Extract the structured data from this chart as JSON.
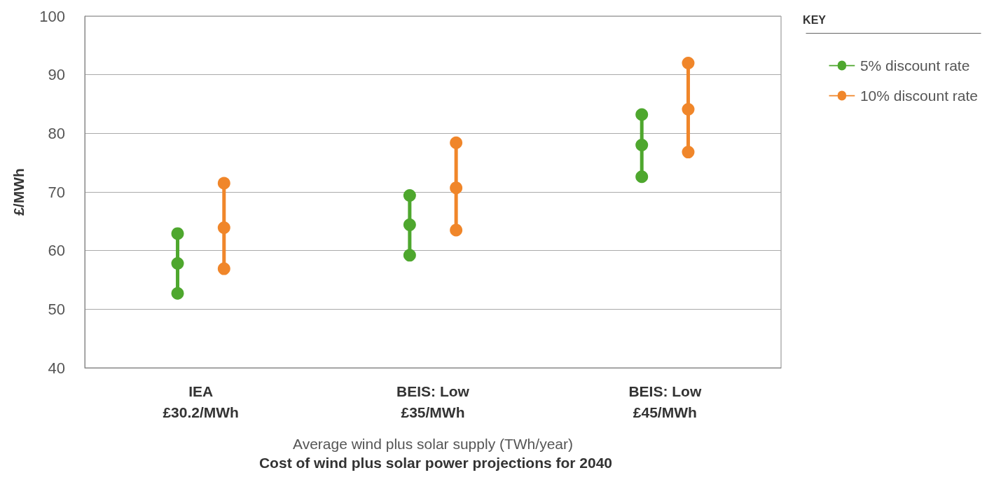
{
  "chart_data": {
    "type": "line",
    "title": "Cost of wind plus solar power projections for 2040",
    "xlabel": "Average wind plus solar supply (TWh/year)",
    "ylabel": "£/MWh",
    "legend_title": "KEY",
    "categories": [
      "IEA\n£30.2/MWh",
      "BEIS: Low\n£35/MWh",
      "BEIS: Low\n£45/MWh"
    ],
    "series": [
      {
        "name": "5% discount rate",
        "color": "#4ea72e",
        "x": [
          "IEA\n£30.2/MWh",
          "IEA\n£30.2/MWh",
          "IEA\n£30.2/MWh",
          "BEIS: Low\n£35/MWh",
          "BEIS: Low\n£35/MWh",
          "BEIS: Low\n£35/MWh",
          "BEIS: Low\n£35/MWh",
          "BEIS: Low\n£45/MWh",
          "BEIS: Low\n£45/MWh",
          "BEIS: Low\n£45/MWh",
          "BEIS: Low\n£45/MWh"
        ],
        "values": [
          52.7,
          57.8,
          62.9,
          null,
          59.2,
          64.4,
          69.4,
          null,
          72.6,
          78.0,
          83.2
        ]
      },
      {
        "name": "10% discount rate",
        "color": "#f0862a",
        "x": [
          "IEA\n£30.2/MWh",
          "IEA\n£30.2/MWh",
          "IEA\n£30.2/MWh",
          "BEIS: Low\n£35/MWh",
          "BEIS: Low\n£35/MWh",
          "BEIS: Low\n£35/MWh",
          "BEIS: Low\n£35/MWh",
          "BEIS: Low\n£45/MWh",
          "BEIS: Low\n£45/MWh",
          "BEIS: Low\n£45/MWh",
          "BEIS: Low\n£45/MWh"
        ],
        "values": [
          56.9,
          63.9,
          71.5,
          null,
          63.5,
          70.7,
          78.4,
          null,
          76.8,
          84.1,
          92.0
        ]
      }
    ],
    "ylim": [
      40,
      100
    ],
    "yticks": [
      40,
      50,
      60,
      70,
      80,
      90,
      100
    ],
    "grid": "y",
    "legend": "top right",
    "marker": "circle",
    "line_style": "solid"
  }
}
